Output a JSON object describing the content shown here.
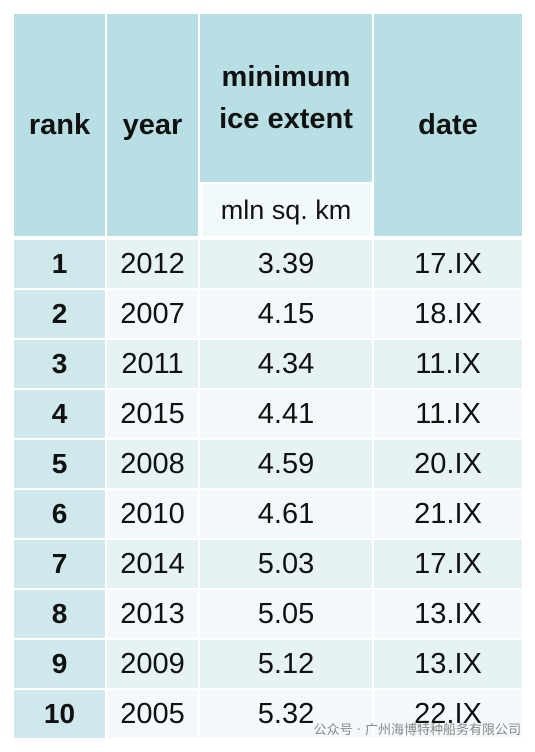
{
  "table": {
    "header": [
      "rank",
      "year",
      "minimum ice extent",
      "date"
    ],
    "subheader": "mln sq. km",
    "rows": [
      [
        "1",
        "2012",
        "3.39",
        "17.IX"
      ],
      [
        "2",
        "2007",
        "4.15",
        "18.IX"
      ],
      [
        "3",
        "2011",
        "4.34",
        "11.IX"
      ],
      [
        "4",
        "2015",
        "4.41",
        "11.IX"
      ],
      [
        "5",
        "2008",
        "4.59",
        "20.IX"
      ],
      [
        "6",
        "2010",
        "4.61",
        "21.IX"
      ],
      [
        "7",
        "2014",
        "5.03",
        "17.IX"
      ],
      [
        "8",
        "2013",
        "5.05",
        "13.IX"
      ],
      [
        "9",
        "2009",
        "5.12",
        "13.IX"
      ],
      [
        "10",
        "2005",
        "5.32",
        "22.IX"
      ]
    ]
  },
  "watermark": "公众号 · 广州海博特种船务有限公司"
}
